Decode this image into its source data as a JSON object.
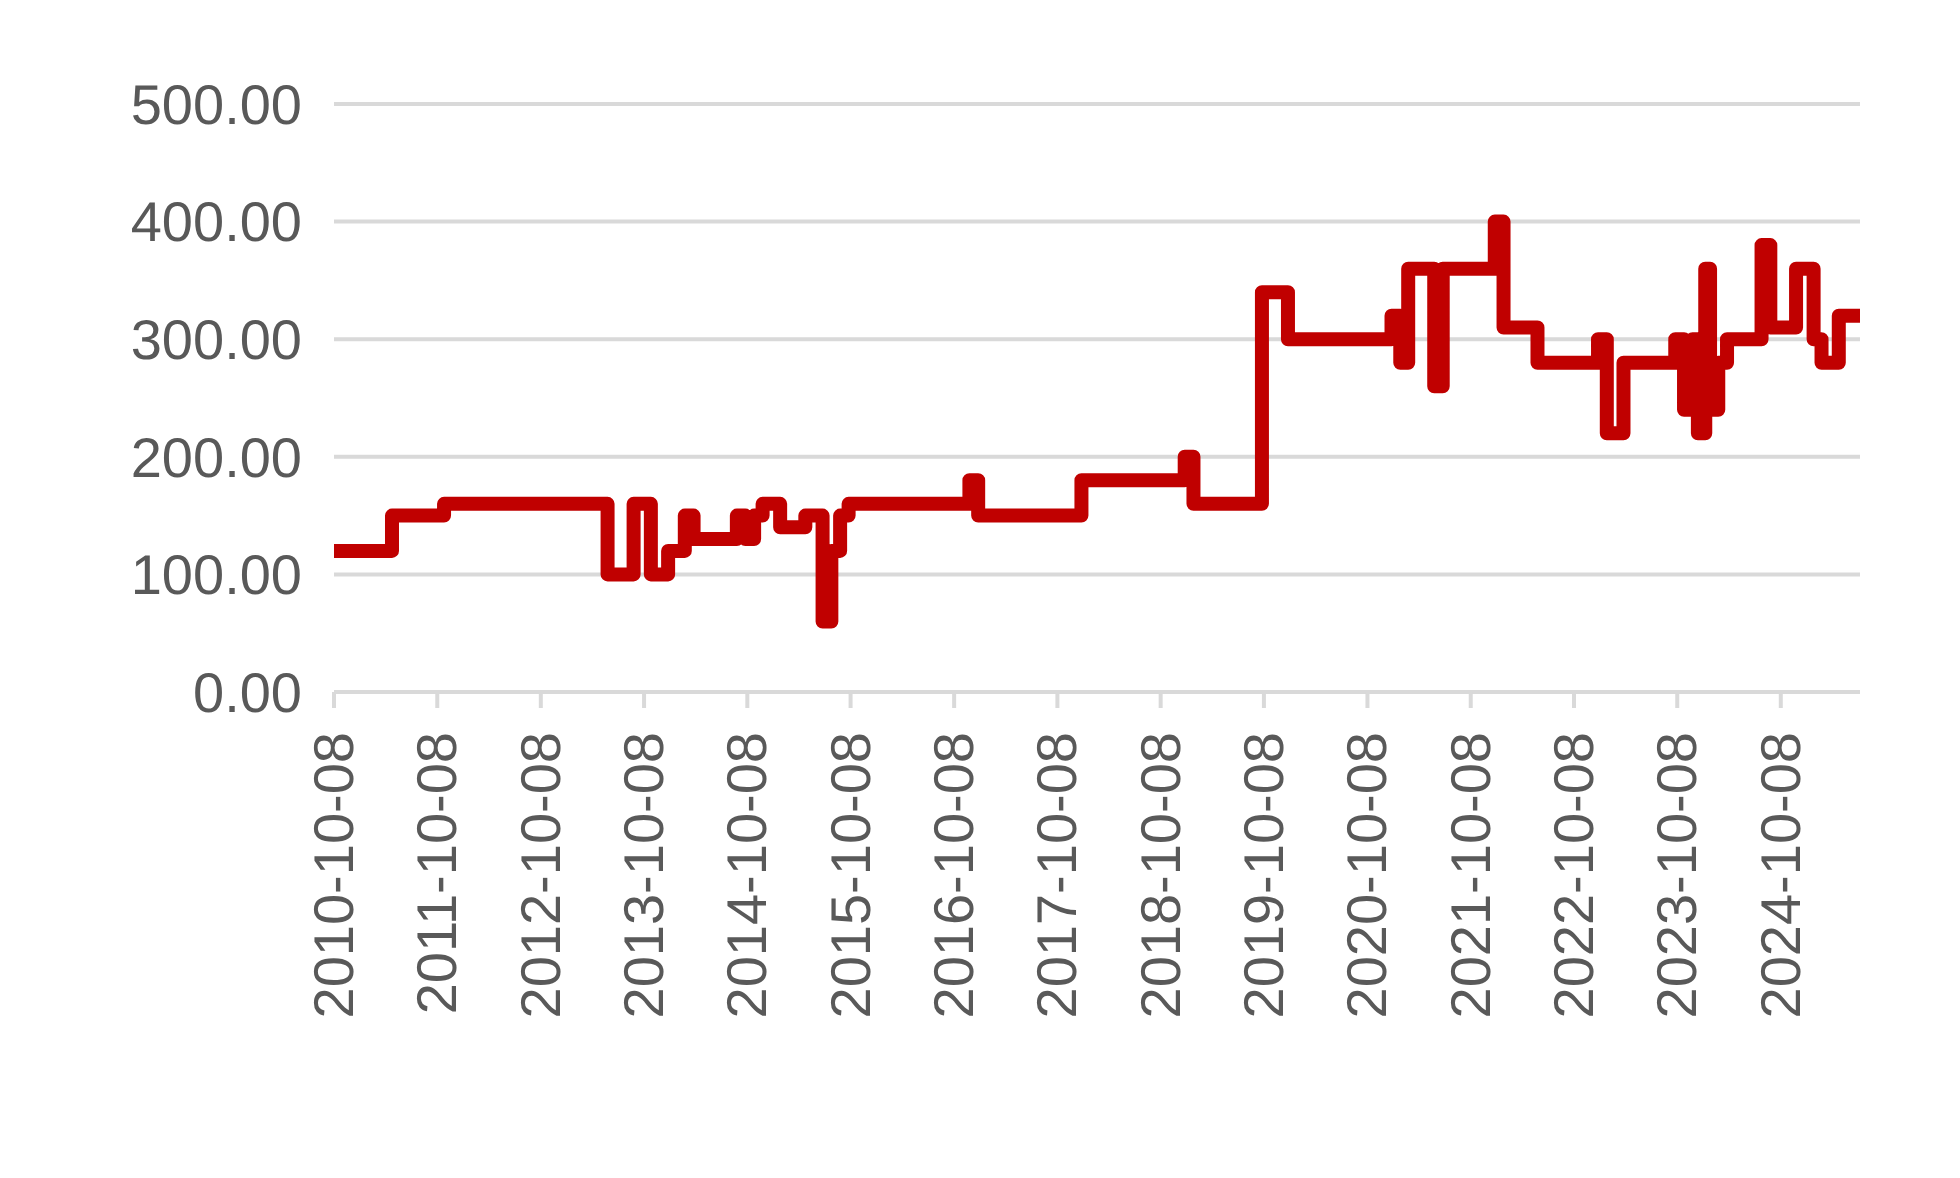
{
  "chart_data": {
    "type": "step",
    "x": [
      "2010-10-08",
      "2011-05-01",
      "2011-11-01",
      "2013-06-01",
      "2013-09-01",
      "2013-11-01",
      "2014-01-01",
      "2014-03-01",
      "2014-04-01",
      "2014-09-01",
      "2014-10-01",
      "2014-11-01",
      "2014-12-01",
      "2015-02-01",
      "2015-05-01",
      "2015-07-01",
      "2015-08-01",
      "2015-09-01",
      "2015-10-01",
      "2016-12-01",
      "2017-01-01",
      "2018-01-01",
      "2019-01-01",
      "2019-02-01",
      "2019-10-01",
      "2020-01-01",
      "2021-01-01",
      "2021-02-01",
      "2021-03-01",
      "2021-06-01",
      "2021-07-01",
      "2022-01-01",
      "2022-02-01",
      "2022-06-01",
      "2023-01-01",
      "2023-02-01",
      "2023-04-01",
      "2023-10-01",
      "2023-11-01",
      "2023-12-01",
      "2023-12-20",
      "2024-01-15",
      "2024-02-01",
      "2024-03-01",
      "2024-04-01",
      "2024-08-01",
      "2024-09-01",
      "2024-12-01",
      "2025-02-01",
      "2025-03-01",
      "2025-05-01",
      "2025-07-15"
    ],
    "series": [
      {
        "color": "#c00000",
        "values": [
          120,
          150,
          160,
          100,
          160,
          100,
          120,
          150,
          130,
          150,
          130,
          150,
          160,
          140,
          150,
          60,
          120,
          150,
          160,
          180,
          150,
          180,
          200,
          160,
          340,
          300,
          320,
          280,
          360,
          260,
          360,
          400,
          310,
          280,
          300,
          220,
          280,
          300,
          240,
          300,
          220,
          360,
          240,
          280,
          300,
          380,
          310,
          360,
          300,
          280,
          320,
          320
        ]
      }
    ],
    "xlim": [
      "2010-10-08",
      "2025-07-15"
    ],
    "xticks": [
      "2010-10-08",
      "2011-10-08",
      "2012-10-08",
      "2013-10-08",
      "2014-10-08",
      "2015-10-08",
      "2016-10-08",
      "2017-10-08",
      "2018-10-08",
      "2019-10-08",
      "2020-10-08",
      "2021-10-08",
      "2022-10-08",
      "2023-10-08",
      "2024-10-08"
    ],
    "ylim": [
      0,
      500
    ],
    "yticks": [
      {
        "value": 0,
        "label": "0.00"
      },
      {
        "value": 100,
        "label": "100.00"
      },
      {
        "value": 200,
        "label": "200.00"
      },
      {
        "value": 300,
        "label": "300.00"
      },
      {
        "value": 400,
        "label": "400.00"
      },
      {
        "value": 500,
        "label": "500.00"
      }
    ],
    "grid": "y",
    "marker": "none",
    "line_style": "solid"
  }
}
